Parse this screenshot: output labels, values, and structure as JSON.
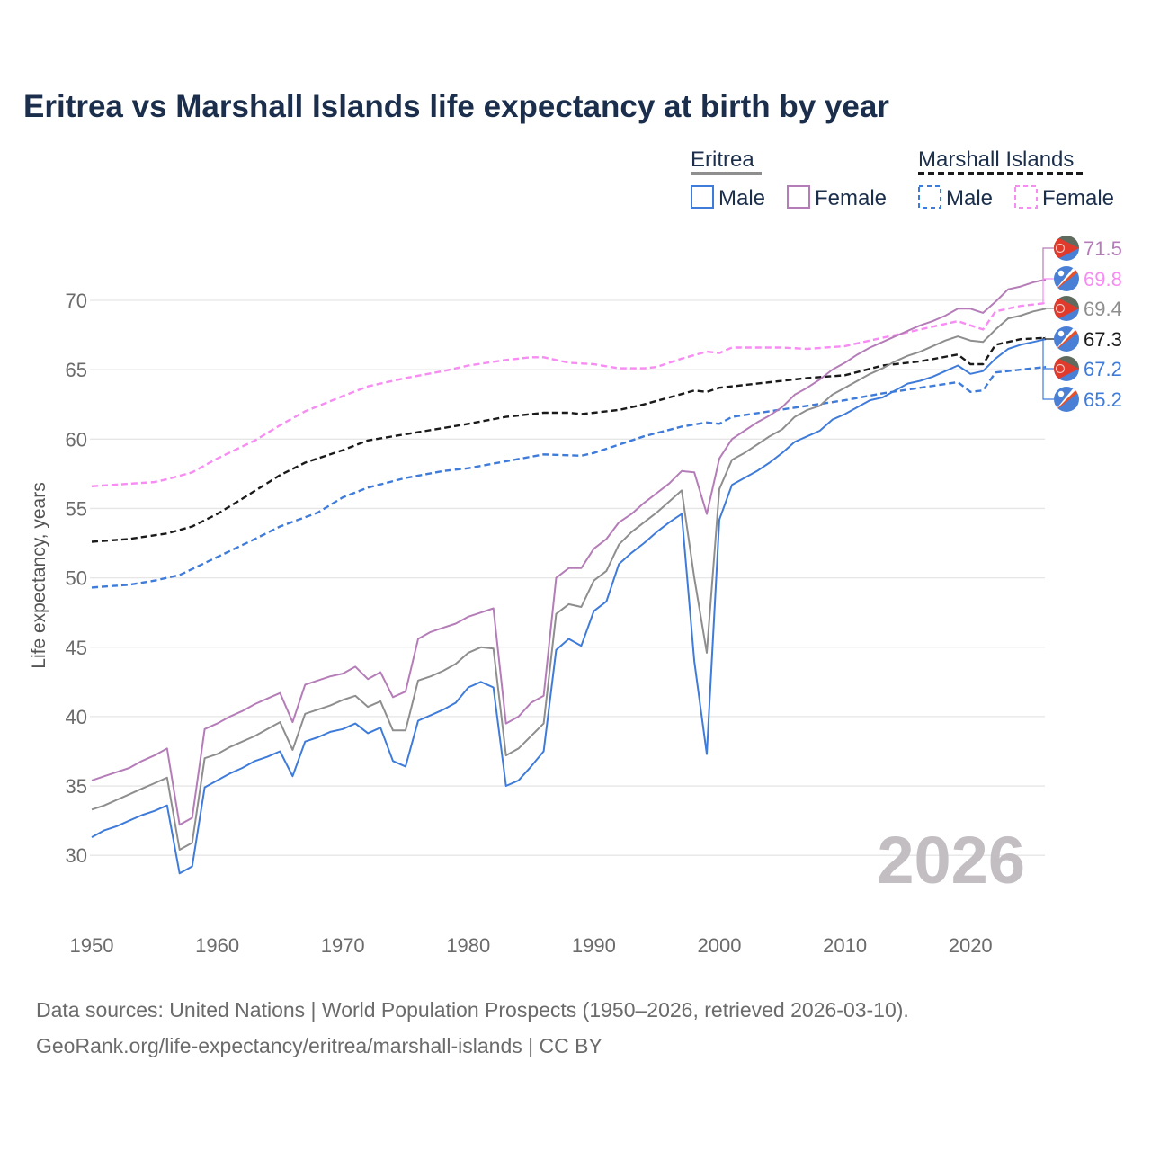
{
  "chart_data": {
    "type": "line",
    "title": "Eritrea vs Marshall Islands life expectancy at birth by year",
    "ylabel": "Life expectancy, years",
    "xlabel": "",
    "xlim": [
      1950,
      2026
    ],
    "ylim": [
      27,
      73
    ],
    "x_ticks": [
      "1950",
      "1960",
      "1970",
      "1980",
      "1990",
      "2000",
      "2010",
      "2020"
    ],
    "y_ticks": [
      "30",
      "35",
      "40",
      "45",
      "50",
      "55",
      "60",
      "65",
      "70"
    ],
    "grid": true,
    "legend_position": "top-right",
    "current_year_label": "2026",
    "legend": {
      "groups": [
        {
          "country": "Eritrea",
          "items": [
            "Male",
            "Female"
          ]
        },
        {
          "country": "Marshall Islands",
          "items": [
            "Male",
            "Female"
          ]
        }
      ]
    },
    "series": [
      {
        "name": "Eritrea Female",
        "country": "Eritrea",
        "sex": "Female",
        "color": "#b57db8",
        "dashed": false,
        "start_year": 1950,
        "values": [
          35.4,
          35.7,
          36.0,
          36.3,
          36.8,
          37.2,
          37.7,
          32.2,
          32.7,
          39.1,
          39.5,
          40.0,
          40.4,
          40.9,
          41.3,
          41.7,
          39.6,
          42.3,
          42.6,
          42.9,
          43.1,
          43.6,
          42.7,
          43.2,
          41.4,
          41.8,
          45.6,
          46.1,
          46.4,
          46.7,
          47.2,
          47.5,
          47.8,
          39.5,
          40.0,
          41.0,
          41.5,
          50.0,
          50.7,
          50.7,
          52.1,
          52.8,
          54.0,
          54.6,
          55.4,
          56.1,
          56.8,
          57.7,
          57.6,
          54.6,
          58.6,
          60.0,
          60.6,
          61.2,
          61.7,
          62.3,
          63.2,
          63.7,
          64.3,
          65.0,
          65.5,
          66.1,
          66.6,
          67.0,
          67.4,
          67.8,
          68.2,
          68.5,
          68.9,
          69.4,
          69.4,
          69.1,
          69.9,
          70.8,
          71.0,
          71.3,
          71.5
        ],
        "end_label": "71.5",
        "flag": "eritrea"
      },
      {
        "name": "Marshall Islands Female",
        "country": "Marshall Islands",
        "sex": "Female",
        "color": "#f78cf2",
        "dashed": true,
        "points": [
          [
            1950,
            56.6
          ],
          [
            1955,
            56.9
          ],
          [
            1956,
            57.1
          ],
          [
            1958,
            57.6
          ],
          [
            1960,
            58.6
          ],
          [
            1963,
            59.9
          ],
          [
            1965,
            61.0
          ],
          [
            1967,
            62.0
          ],
          [
            1970,
            63.1
          ],
          [
            1972,
            63.8
          ],
          [
            1975,
            64.4
          ],
          [
            1978,
            64.9
          ],
          [
            1980,
            65.3
          ],
          [
            1983,
            65.7
          ],
          [
            1985,
            65.9
          ],
          [
            1986,
            65.9
          ],
          [
            1988,
            65.5
          ],
          [
            1990,
            65.4
          ],
          [
            1992,
            65.1
          ],
          [
            1994,
            65.1
          ],
          [
            1995,
            65.2
          ],
          [
            1997,
            65.8
          ],
          [
            1999,
            66.3
          ],
          [
            2000,
            66.2
          ],
          [
            2001,
            66.6
          ],
          [
            2005,
            66.6
          ],
          [
            2007,
            66.5
          ],
          [
            2010,
            66.7
          ],
          [
            2012,
            67.1
          ],
          [
            2015,
            67.7
          ],
          [
            2019,
            68.5
          ],
          [
            2020,
            68.2
          ],
          [
            2021,
            67.9
          ],
          [
            2022,
            69.2
          ],
          [
            2024,
            69.6
          ],
          [
            2026,
            69.8
          ]
        ],
        "end_label": "69.8",
        "flag": "marshall-islands"
      },
      {
        "name": "Eritrea",
        "country": "Eritrea",
        "sex": "Both",
        "color": "#8e8e8e",
        "dashed": false,
        "start_year": 1950,
        "values": [
          33.3,
          33.6,
          34.0,
          34.4,
          34.8,
          35.2,
          35.6,
          30.4,
          30.9,
          37.0,
          37.3,
          37.8,
          38.2,
          38.6,
          39.1,
          39.6,
          37.6,
          40.2,
          40.5,
          40.8,
          41.2,
          41.5,
          40.7,
          41.1,
          39.0,
          39.0,
          42.6,
          42.9,
          43.3,
          43.8,
          44.6,
          45.0,
          44.9,
          37.2,
          37.7,
          38.6,
          39.5,
          47.4,
          48.1,
          47.9,
          49.8,
          50.5,
          52.4,
          53.3,
          54.0,
          54.7,
          55.5,
          56.3,
          50.0,
          44.6,
          56.4,
          58.5,
          59.0,
          59.6,
          60.2,
          60.7,
          61.6,
          62.1,
          62.4,
          63.2,
          63.7,
          64.2,
          64.7,
          65.1,
          65.6,
          66.0,
          66.3,
          66.7,
          67.1,
          67.4,
          67.1,
          67.0,
          67.9,
          68.7,
          68.9,
          69.2,
          69.4
        ],
        "end_label": "69.4",
        "flag": "eritrea"
      },
      {
        "name": "Marshall Islands",
        "country": "Marshall Islands",
        "sex": "Both",
        "color": "#1a1a1a",
        "dashed": true,
        "points": [
          [
            1950,
            52.6
          ],
          [
            1953,
            52.8
          ],
          [
            1956,
            53.2
          ],
          [
            1958,
            53.7
          ],
          [
            1960,
            54.6
          ],
          [
            1962,
            55.7
          ],
          [
            1965,
            57.4
          ],
          [
            1967,
            58.3
          ],
          [
            1970,
            59.2
          ],
          [
            1972,
            59.9
          ],
          [
            1974,
            60.2
          ],
          [
            1976,
            60.5
          ],
          [
            1978,
            60.8
          ],
          [
            1980,
            61.1
          ],
          [
            1983,
            61.6
          ],
          [
            1986,
            61.9
          ],
          [
            1988,
            61.9
          ],
          [
            1989,
            61.8
          ],
          [
            1990,
            61.9
          ],
          [
            1992,
            62.1
          ],
          [
            1994,
            62.5
          ],
          [
            1996,
            63.0
          ],
          [
            1998,
            63.5
          ],
          [
            1999,
            63.4
          ],
          [
            2000,
            63.7
          ],
          [
            2003,
            64.0
          ],
          [
            2007,
            64.4
          ],
          [
            2010,
            64.6
          ],
          [
            2013,
            65.3
          ],
          [
            2016,
            65.6
          ],
          [
            2019,
            66.1
          ],
          [
            2020,
            65.4
          ],
          [
            2021,
            65.4
          ],
          [
            2022,
            66.8
          ],
          [
            2024,
            67.2
          ],
          [
            2026,
            67.3
          ]
        ],
        "end_label": "67.3",
        "flag": "marshall-islands"
      },
      {
        "name": "Eritrea Male",
        "country": "Eritrea",
        "sex": "Male",
        "color": "#3f7bd9",
        "dashed": false,
        "start_year": 1950,
        "values": [
          31.3,
          31.8,
          32.1,
          32.5,
          32.9,
          33.2,
          33.6,
          28.7,
          29.2,
          34.9,
          35.4,
          35.9,
          36.3,
          36.8,
          37.1,
          37.5,
          35.7,
          38.2,
          38.5,
          38.9,
          39.1,
          39.5,
          38.8,
          39.2,
          36.8,
          36.4,
          39.7,
          40.1,
          40.5,
          41.0,
          42.1,
          42.5,
          42.1,
          35.0,
          35.4,
          36.4,
          37.5,
          44.8,
          45.6,
          45.1,
          47.6,
          48.3,
          51.0,
          51.8,
          52.5,
          53.3,
          54.0,
          54.6,
          44.0,
          37.3,
          54.2,
          56.7,
          57.2,
          57.7,
          58.3,
          59.0,
          59.8,
          60.2,
          60.6,
          61.4,
          61.8,
          62.3,
          62.8,
          63.0,
          63.5,
          64.0,
          64.2,
          64.5,
          64.9,
          65.3,
          64.7,
          64.9,
          65.8,
          66.5,
          66.8,
          67.0,
          67.2
        ],
        "end_label": "67.2",
        "flag": "eritrea"
      },
      {
        "name": "Marshall Islands Male",
        "country": "Marshall Islands",
        "sex": "Male",
        "color": "#3f7bd9",
        "dashed": true,
        "points": [
          [
            1950,
            49.3
          ],
          [
            1953,
            49.5
          ],
          [
            1955,
            49.8
          ],
          [
            1957,
            50.2
          ],
          [
            1960,
            51.5
          ],
          [
            1963,
            52.8
          ],
          [
            1965,
            53.7
          ],
          [
            1968,
            54.7
          ],
          [
            1970,
            55.8
          ],
          [
            1972,
            56.5
          ],
          [
            1975,
            57.2
          ],
          [
            1978,
            57.7
          ],
          [
            1980,
            57.9
          ],
          [
            1983,
            58.4
          ],
          [
            1986,
            58.9
          ],
          [
            1989,
            58.8
          ],
          [
            1990,
            59.0
          ],
          [
            1992,
            59.6
          ],
          [
            1994,
            60.2
          ],
          [
            1997,
            60.9
          ],
          [
            1999,
            61.2
          ],
          [
            2000,
            61.1
          ],
          [
            2001,
            61.6
          ],
          [
            2004,
            62.0
          ],
          [
            2007,
            62.4
          ],
          [
            2010,
            62.8
          ],
          [
            2013,
            63.3
          ],
          [
            2016,
            63.7
          ],
          [
            2019,
            64.1
          ],
          [
            2020,
            63.4
          ],
          [
            2021,
            63.5
          ],
          [
            2022,
            64.8
          ],
          [
            2024,
            65.0
          ],
          [
            2026,
            65.2
          ]
        ],
        "end_label": "65.2",
        "flag": "marshall-islands"
      }
    ]
  },
  "footer": {
    "line1": "Data sources: United Nations | World Population Prospects (1950–2026, retrieved 2026-03-10).",
    "line2": "GeoRank.org/life-expectancy/eritrea/marshall-islands | CC BY"
  },
  "colors": {
    "title": "#1b2e4b",
    "grid": "#e6e6e6"
  }
}
